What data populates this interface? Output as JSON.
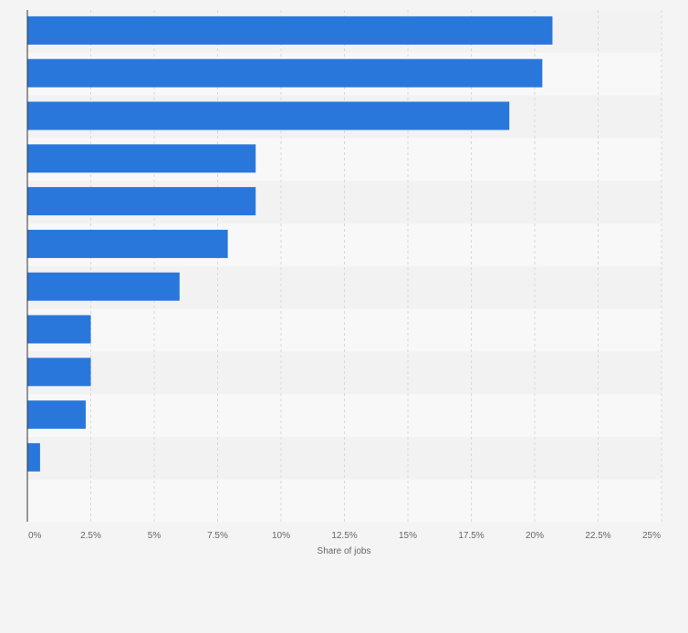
{
  "chart_data": {
    "type": "bar",
    "orientation": "horizontal",
    "categories": [
      "",
      "",
      "",
      "",
      "",
      "",
      "",
      "",
      "",
      "",
      ""
    ],
    "values": [
      20.7,
      20.3,
      19.0,
      9.0,
      9.0,
      7.9,
      6.0,
      2.5,
      2.5,
      2.3,
      0.5
    ],
    "title": "",
    "xlabel": "Share of jobs",
    "ylabel": "",
    "xlim": [
      0,
      25
    ],
    "x_ticks": [
      0,
      2.5,
      5,
      7.5,
      10,
      12.5,
      15,
      17.5,
      20,
      22.5,
      25
    ],
    "x_tick_labels": [
      "0%",
      "2.5%",
      "5%",
      "7.5%",
      "10%",
      "12.5%",
      "15%",
      "17.5%",
      "20%",
      "22.5%",
      "25%"
    ],
    "grid": true,
    "legend": "none",
    "colors": {
      "bar": "#2a77dc",
      "background": "#f4f4f4",
      "band_light": "#f8f8f8",
      "band_dark": "#f2f2f2",
      "grid": "#d9d9d9",
      "axis": "#333333",
      "tick_text": "#666666"
    }
  }
}
